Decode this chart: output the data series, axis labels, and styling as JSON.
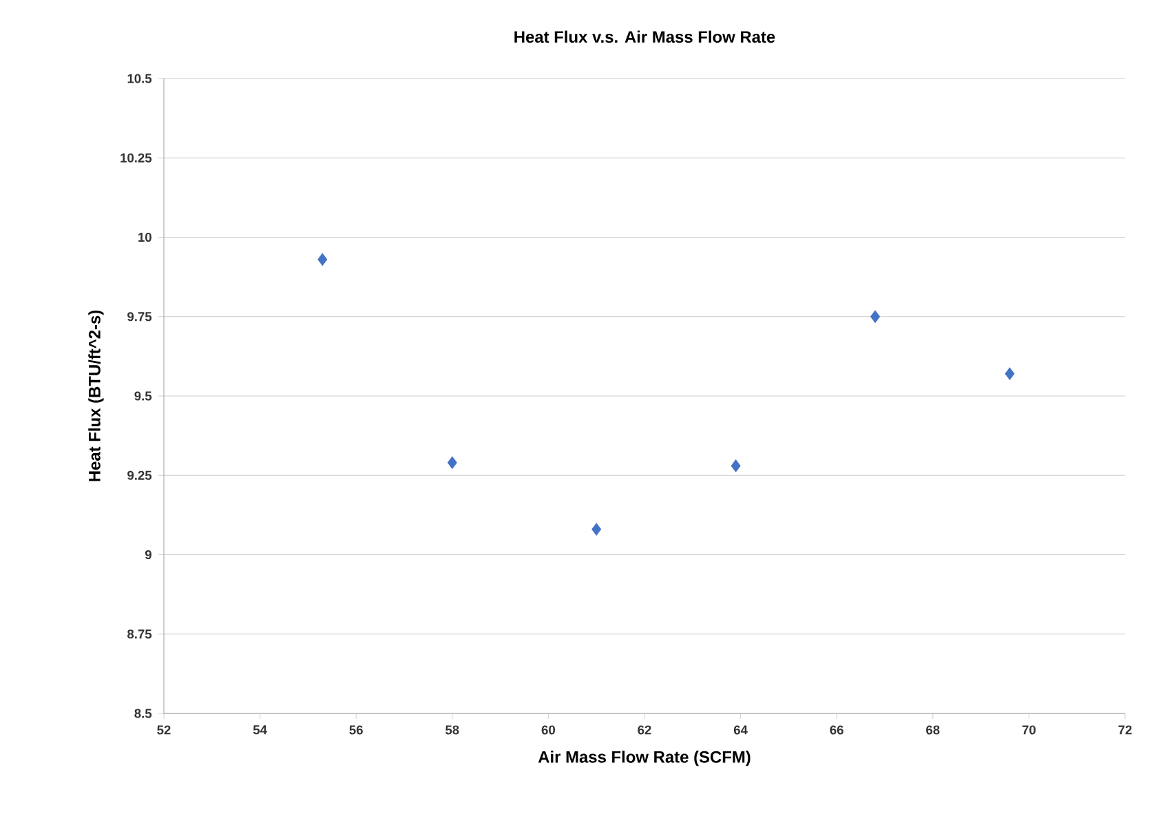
{
  "chart_data": {
    "type": "scatter",
    "title": "Heat Flux v.s. Air Mass Flow Rate",
    "xlabel": "Air Mass Flow Rate (SCFM)",
    "ylabel": "Heat Flux (BTU/ft^2-s)",
    "x": [
      55.3,
      58.0,
      61.0,
      63.9,
      66.8,
      69.6
    ],
    "series": [
      {
        "color": "#4472c4",
        "values": [
          9.93,
          9.29,
          9.08,
          9.28,
          9.75,
          9.57
        ]
      }
    ],
    "xlim": [
      52,
      72
    ],
    "xticks": [
      52,
      54,
      56,
      58,
      60,
      62,
      64,
      66,
      68,
      70,
      72
    ],
    "ylim": [
      8.5,
      10.5
    ],
    "yticks": [
      8.5,
      8.75,
      9,
      9.25,
      9.5,
      9.75,
      10,
      10.25,
      10.5
    ],
    "grid": "y",
    "marker": "diamond"
  }
}
